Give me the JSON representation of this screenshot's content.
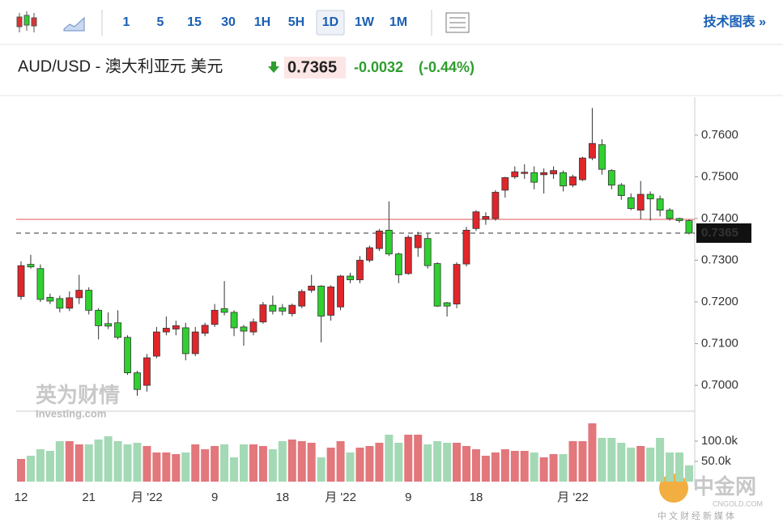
{
  "toolbar": {
    "intervals": [
      "1",
      "5",
      "15",
      "30",
      "1H",
      "5H",
      "1D",
      "1W",
      "1M"
    ],
    "selected": "1D",
    "link": "技术图表 »"
  },
  "header": {
    "symbol": "AUD/USD - 澳大利亚元 美元",
    "price": "0.7365",
    "change": "-0.0032",
    "change_pct": "(-0.44%)"
  },
  "watermarks": {
    "investing_cn": "英为财情",
    "investing": "Investing.com",
    "cngold": "中金网",
    "cngold_url": "CNGOLD.COM",
    "cngold_tag": "中文财经新媒体"
  },
  "chart_data": {
    "type": "candlestick",
    "ylim": [
      0.6938,
      0.7691
    ],
    "yticks": [
      {
        "value": 0.7,
        "label": "0.7000"
      },
      {
        "value": 0.71,
        "label": "0.7100"
      },
      {
        "value": 0.72,
        "label": "0.7200"
      },
      {
        "value": 0.73,
        "label": "0.7300"
      },
      {
        "value": 0.74,
        "label": "0.7400"
      },
      {
        "value": 0.75,
        "label": "0.7500"
      },
      {
        "value": 0.76,
        "label": "0.7600"
      }
    ],
    "last_price": 0.7365,
    "last_price_label": "0.7365",
    "prev_close": 0.7398,
    "up_color": "#e0262b",
    "down_color": "#2fd12f",
    "x_labels": [
      {
        "index": 0,
        "label": "12"
      },
      {
        "index": 7,
        "label": "21"
      },
      {
        "index": 13,
        "label": "月 '22"
      },
      {
        "index": 20,
        "label": "9"
      },
      {
        "index": 27,
        "label": "18"
      },
      {
        "index": 33,
        "label": "月 '22"
      },
      {
        "index": 40,
        "label": "9"
      },
      {
        "index": 47,
        "label": "18"
      },
      {
        "index": 57,
        "label": "月 '22"
      }
    ],
    "ohlc": [
      [
        0.7213,
        0.7297,
        0.7205,
        0.7287
      ],
      [
        0.729,
        0.7313,
        0.728,
        0.7284
      ],
      [
        0.728,
        0.729,
        0.72,
        0.7206
      ],
      [
        0.7211,
        0.722,
        0.7195,
        0.7202
      ],
      [
        0.7208,
        0.7215,
        0.7175,
        0.7185
      ],
      [
        0.7185,
        0.7225,
        0.7178,
        0.721
      ],
      [
        0.721,
        0.7265,
        0.7195,
        0.7228
      ],
      [
        0.7228,
        0.7235,
        0.717,
        0.718
      ],
      [
        0.718,
        0.7185,
        0.711,
        0.7143
      ],
      [
        0.7148,
        0.7175,
        0.7135,
        0.7142
      ],
      [
        0.715,
        0.718,
        0.711,
        0.7115
      ],
      [
        0.7115,
        0.712,
        0.7025,
        0.703
      ],
      [
        0.703,
        0.7035,
        0.6975,
        0.699
      ],
      [
        0.7,
        0.7075,
        0.6985,
        0.7066
      ],
      [
        0.707,
        0.714,
        0.7065,
        0.7128
      ],
      [
        0.7128,
        0.7165,
        0.712,
        0.7137
      ],
      [
        0.7135,
        0.7155,
        0.712,
        0.7143
      ],
      [
        0.7138,
        0.715,
        0.706,
        0.7076
      ],
      [
        0.7076,
        0.714,
        0.707,
        0.7128
      ],
      [
        0.7125,
        0.715,
        0.7118,
        0.7144
      ],
      [
        0.7146,
        0.7195,
        0.714,
        0.718
      ],
      [
        0.7184,
        0.725,
        0.7168,
        0.7175
      ],
      [
        0.7175,
        0.718,
        0.7118,
        0.7138
      ],
      [
        0.714,
        0.7145,
        0.7095,
        0.713
      ],
      [
        0.7128,
        0.716,
        0.712,
        0.7152
      ],
      [
        0.7152,
        0.72,
        0.7148,
        0.7193
      ],
      [
        0.7192,
        0.7215,
        0.717,
        0.7178
      ],
      [
        0.7186,
        0.7195,
        0.7168,
        0.7178
      ],
      [
        0.7172,
        0.7196,
        0.7165,
        0.7192
      ],
      [
        0.719,
        0.723,
        0.7185,
        0.7225
      ],
      [
        0.7228,
        0.7265,
        0.7222,
        0.7238
      ],
      [
        0.7238,
        0.724,
        0.7103,
        0.7166
      ],
      [
        0.7168,
        0.724,
        0.7155,
        0.7236
      ],
      [
        0.7188,
        0.7265,
        0.718,
        0.7262
      ],
      [
        0.7262,
        0.727,
        0.7245,
        0.7253
      ],
      [
        0.7253,
        0.731,
        0.7245,
        0.73
      ],
      [
        0.73,
        0.7335,
        0.7295,
        0.733
      ],
      [
        0.7328,
        0.7375,
        0.7322,
        0.737
      ],
      [
        0.7372,
        0.7441,
        0.731,
        0.7315
      ],
      [
        0.7315,
        0.7318,
        0.7245,
        0.7265
      ],
      [
        0.7268,
        0.736,
        0.7265,
        0.7355
      ],
      [
        0.733,
        0.7368,
        0.7308,
        0.736
      ],
      [
        0.7352,
        0.7365,
        0.728,
        0.7287
      ],
      [
        0.7292,
        0.7295,
        0.7188,
        0.719
      ],
      [
        0.7198,
        0.72,
        0.7165,
        0.719
      ],
      [
        0.7195,
        0.7295,
        0.7185,
        0.729
      ],
      [
        0.7291,
        0.738,
        0.7285,
        0.7372
      ],
      [
        0.7376,
        0.742,
        0.737,
        0.7416
      ],
      [
        0.7398,
        0.7415,
        0.7385,
        0.7405
      ],
      [
        0.74,
        0.7468,
        0.7395,
        0.7463
      ],
      [
        0.7468,
        0.75,
        0.745,
        0.7498
      ],
      [
        0.75,
        0.7525,
        0.7495,
        0.7512
      ],
      [
        0.7508,
        0.753,
        0.7495,
        0.7511
      ],
      [
        0.751,
        0.7525,
        0.747,
        0.7487
      ],
      [
        0.7505,
        0.752,
        0.746,
        0.751
      ],
      [
        0.7507,
        0.7525,
        0.7495,
        0.7515
      ],
      [
        0.751,
        0.7515,
        0.7465,
        0.7478
      ],
      [
        0.748,
        0.7505,
        0.7475,
        0.75
      ],
      [
        0.7493,
        0.7548,
        0.749,
        0.7545
      ],
      [
        0.7545,
        0.7665,
        0.754,
        0.758
      ],
      [
        0.7577,
        0.759,
        0.7505,
        0.7518
      ],
      [
        0.7515,
        0.7518,
        0.747,
        0.748
      ],
      [
        0.748,
        0.7485,
        0.7445,
        0.7455
      ],
      [
        0.745,
        0.746,
        0.742,
        0.7424
      ],
      [
        0.742,
        0.749,
        0.7398,
        0.7458
      ],
      [
        0.7458,
        0.7465,
        0.7395,
        0.7447
      ],
      [
        0.7447,
        0.7455,
        0.7405,
        0.742
      ],
      [
        0.742,
        0.7425,
        0.7395,
        0.74
      ],
      [
        0.74,
        0.7402,
        0.739,
        0.7395
      ],
      [
        0.7395,
        0.7398,
        0.7362,
        0.7365
      ]
    ],
    "volume": {
      "ylim": [
        0,
        170000
      ],
      "yticks": [
        {
          "value": 50000,
          "label": "50.0k"
        },
        {
          "value": 100000,
          "label": "100.0k"
        }
      ],
      "up_color": "#e2777c",
      "down_color": "#a3d9b5",
      "values": [
        56000,
        64000,
        80000,
        76000,
        100000,
        100000,
        92000,
        92000,
        104000,
        112000,
        100000,
        92000,
        96000,
        88000,
        72000,
        72000,
        68000,
        72000,
        92000,
        80000,
        88000,
        92000,
        60000,
        92000,
        92000,
        88000,
        80000,
        100000,
        104000,
        100000,
        96000,
        60000,
        84000,
        100000,
        72000,
        84000,
        88000,
        96000,
        116000,
        96000,
        116000,
        116000,
        92000,
        100000,
        96000,
        96000,
        88000,
        80000,
        64000,
        72000,
        80000,
        76000,
        76000,
        72000,
        60000,
        68000,
        68000,
        100000,
        100000,
        144000,
        108000,
        108000,
        96000,
        84000,
        88000,
        84000,
        108000,
        72000,
        72000,
        40000
      ]
    }
  }
}
